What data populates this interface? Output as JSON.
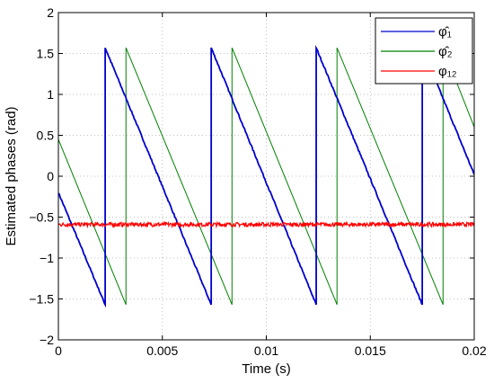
{
  "chart_data": {
    "type": "line",
    "title": "",
    "xlabel": "Time (s)",
    "ylabel": "Estimated phases (rad)",
    "xlim": [
      0,
      0.02
    ],
    "ylim": [
      -2,
      2
    ],
    "x_ticks": [
      "0",
      "0.005",
      "0.01",
      "0.015",
      "0.02"
    ],
    "y_ticks": [
      "−2",
      "−1.5",
      "−1",
      "−0.5",
      "0",
      "0.5",
      "1",
      "1.5",
      "2"
    ],
    "x_tick_values": [
      0,
      0.005,
      0.01,
      0.015,
      0.02
    ],
    "y_tick_values": [
      -2,
      -1.5,
      -1,
      -0.5,
      0,
      0.5,
      1,
      1.5,
      2
    ],
    "grid": "dotted",
    "legend_position": "top-right",
    "series": [
      {
        "name": "φ̂₁",
        "color": "#0000cc",
        "x": [
          0,
          0.00225,
          0.00225,
          0.00735,
          0.00735,
          0.0124,
          0.0124,
          0.0175,
          0.0175,
          0.02
        ],
        "y": [
          -0.2,
          -1.57,
          1.57,
          -1.57,
          1.57,
          -1.57,
          1.57,
          -1.57,
          1.57,
          0.02
        ]
      },
      {
        "name": "φ̂₂",
        "color": "#008000",
        "x": [
          0,
          0.00325,
          0.00325,
          0.00835,
          0.00835,
          0.0134,
          0.0134,
          0.0185,
          0.0185,
          0.02
        ],
        "y": [
          0.45,
          -1.57,
          1.57,
          -1.57,
          1.57,
          -1.57,
          1.57,
          -1.57,
          1.57,
          0.6
        ]
      },
      {
        "name": "φ₁₂",
        "color": "#ff0000",
        "x": [
          0,
          0.02
        ],
        "y": [
          -0.59,
          -0.59
        ]
      }
    ]
  }
}
